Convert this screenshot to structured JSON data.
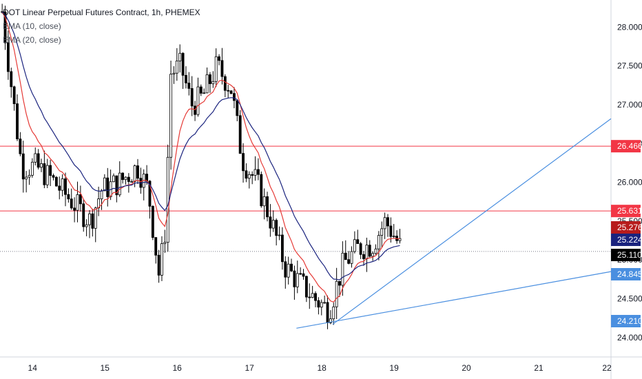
{
  "header": {
    "symbol_line": "DOT Linear Perpetual Futures Contract, 1h, PHEMEX",
    "indicators": [
      "EMA (10, close)",
      "EMA (20, close)"
    ]
  },
  "colors": {
    "up_candle": "#ffffff",
    "down_candle": "#000000",
    "candle_border": "#000000",
    "ema10": "#e53935",
    "ema20": "#1a237e",
    "hline": "#f23645",
    "trendline": "#4a8fe0",
    "last_price_line": "#787b86"
  },
  "price_tags": [
    {
      "value": "26.466",
      "color": "#f23645"
    },
    {
      "value": "25.631",
      "color": "#f23645"
    },
    {
      "value": "25.276",
      "color": "#b71c1c"
    },
    {
      "value": "25.224",
      "color": "#1a237e"
    },
    {
      "value": "25.110",
      "color": "#000000"
    },
    {
      "value": "24.845",
      "color": "#4a8fe0"
    },
    {
      "value": "24.210",
      "color": "#4a8fe0"
    }
  ],
  "chart_data": {
    "type": "candlestick",
    "interval": "1h",
    "ylim": [
      23.75,
      28.35
    ],
    "xlim": [
      13.55,
      22.0
    ],
    "y_ticks": [
      "24.000",
      "24.500",
      "25.000",
      "25.500",
      "26.000",
      "26.500",
      "27.000",
      "27.500",
      "28.000"
    ],
    "x_ticks": [
      {
        "label": "14",
        "day": 14
      },
      {
        "label": "15",
        "day": 15
      },
      {
        "label": "16",
        "day": 16
      },
      {
        "label": "17",
        "day": 17
      },
      {
        "label": "18",
        "day": 18
      },
      {
        "label": "19",
        "day": 19
      },
      {
        "label": "20",
        "day": 20
      },
      {
        "label": "21",
        "day": 21
      },
      {
        "label": "22",
        "day": 22
      }
    ],
    "horizontal_lines": [
      26.466,
      25.631
    ],
    "last_price": 25.11,
    "trendlines": [
      {
        "from": {
          "day": 17.65,
          "price": 24.12
        },
        "to": {
          "day": 22.0,
          "price": 24.85
        }
      },
      {
        "from": {
          "day": 18.15,
          "price": 24.17
        },
        "to": {
          "day": 22.0,
          "price": 26.82
        }
      }
    ],
    "anchor_path": [
      {
        "day": 13.58,
        "price": 28.2
      },
      {
        "day": 13.7,
        "price": 27.3
      },
      {
        "day": 13.85,
        "price": 26.2
      },
      {
        "day": 14.05,
        "price": 26.2
      },
      {
        "day": 14.25,
        "price": 26.05
      },
      {
        "day": 14.5,
        "price": 25.8
      },
      {
        "day": 14.8,
        "price": 25.5
      },
      {
        "day": 14.95,
        "price": 25.9
      },
      {
        "day": 15.2,
        "price": 26.0
      },
      {
        "day": 15.45,
        "price": 26.2
      },
      {
        "day": 15.6,
        "price": 25.9
      },
      {
        "day": 15.75,
        "price": 24.8
      },
      {
        "day": 15.85,
        "price": 25.5
      },
      {
        "day": 15.9,
        "price": 27.4
      },
      {
        "day": 16.05,
        "price": 27.5
      },
      {
        "day": 16.2,
        "price": 27.0
      },
      {
        "day": 16.35,
        "price": 27.1
      },
      {
        "day": 16.55,
        "price": 27.5
      },
      {
        "day": 16.75,
        "price": 27.2
      },
      {
        "day": 16.9,
        "price": 26.3
      },
      {
        "day": 17.1,
        "price": 26.0
      },
      {
        "day": 17.3,
        "price": 25.5
      },
      {
        "day": 17.5,
        "price": 24.9
      },
      {
        "day": 17.7,
        "price": 24.7
      },
      {
        "day": 17.9,
        "price": 24.5
      },
      {
        "day": 18.1,
        "price": 24.35
      },
      {
        "day": 18.3,
        "price": 24.95
      },
      {
        "day": 18.5,
        "price": 25.15
      },
      {
        "day": 18.7,
        "price": 25.2
      },
      {
        "day": 18.88,
        "price": 25.5
      },
      {
        "day": 18.98,
        "price": 25.35
      },
      {
        "day": 19.12,
        "price": 25.11
      }
    ]
  }
}
